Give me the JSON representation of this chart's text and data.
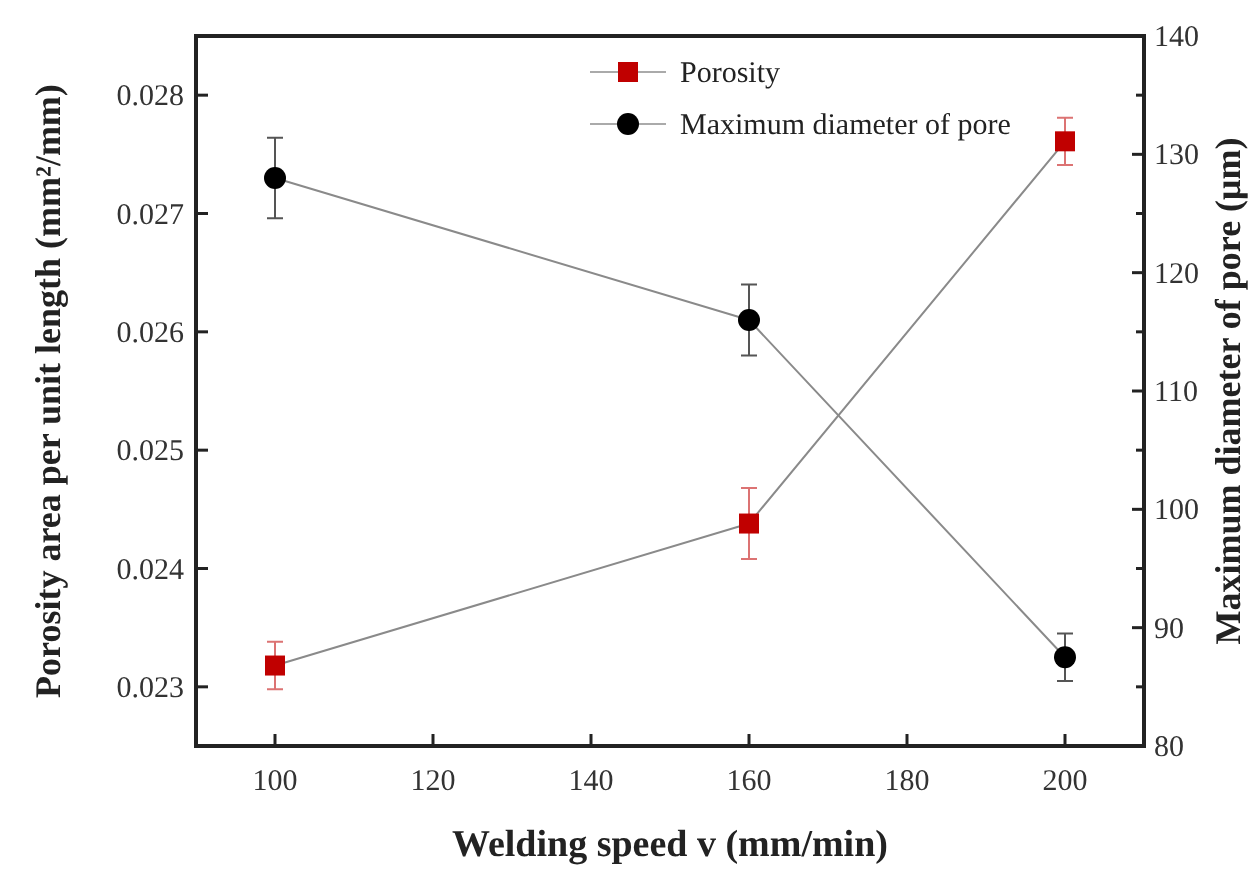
{
  "chart_data": {
    "type": "line",
    "xlabel": "Welding speed v (mm/min)",
    "ylabel": "Porosity area per unit length (mm²/mm)",
    "y2label": "Maximum diameter of pore (μm)",
    "x": [
      100,
      160,
      200
    ],
    "xlim": [
      90,
      210
    ],
    "xticks": [
      100,
      120,
      140,
      160,
      180,
      200
    ],
    "ylim": [
      0.0225,
      0.0285
    ],
    "yticks": [
      0.023,
      0.024,
      0.025,
      0.026,
      0.027,
      0.028
    ],
    "y2lim": [
      80,
      140
    ],
    "y2ticks": [
      80,
      {
        "value": 85,
        "label": null
      },
      90,
      {
        "value": 95,
        "label": null
      },
      100,
      {
        "value": 105,
        "label": null
      },
      110,
      {
        "value": 115,
        "label": null
      },
      120,
      {
        "value": 125,
        "label": null
      },
      130,
      {
        "value": 135,
        "label": null
      },
      140
    ],
    "legend": "top",
    "grid": false,
    "series": [
      {
        "name": "Porosity",
        "color": "#c00000",
        "marker": "square",
        "values": [
          0.02318,
          0.02438,
          0.02761
        ],
        "errors": [
          0.0002,
          0.0003,
          0.0002
        ]
      },
      {
        "name": "Maximum diameter of pore",
        "color": "#000000",
        "marker": "circle",
        "axis": "y2",
        "values": [
          128,
          116,
          87.5
        ],
        "errors": [
          3.4,
          3,
          2
        ]
      }
    ]
  }
}
